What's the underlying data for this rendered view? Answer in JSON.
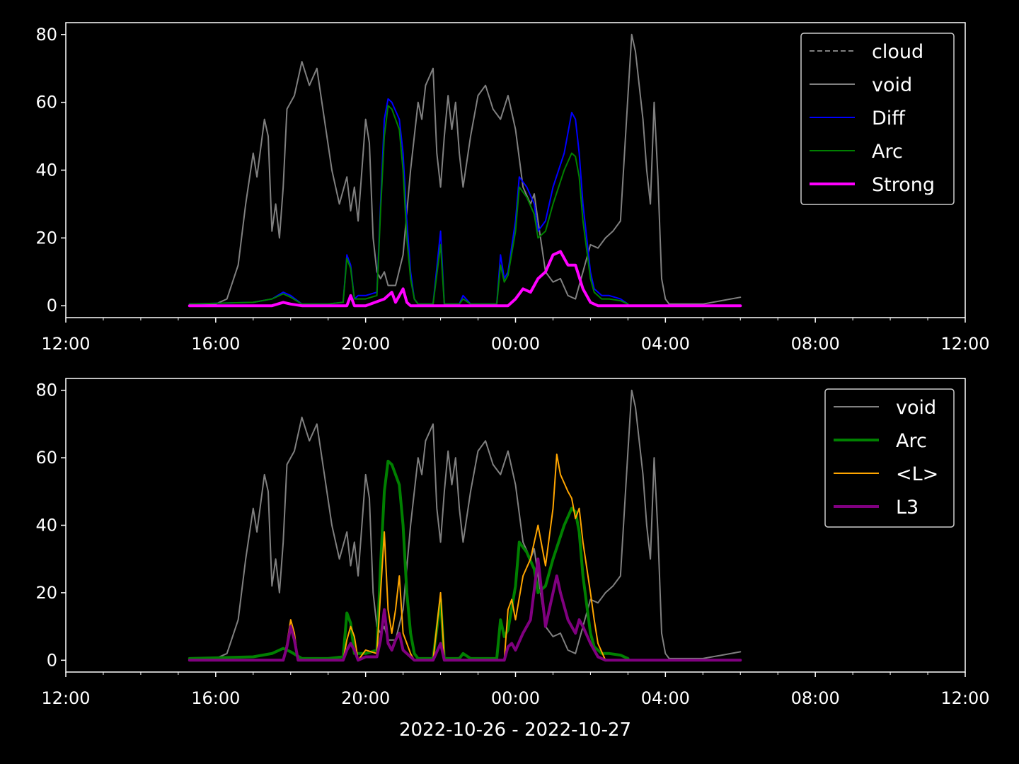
{
  "figure": {
    "background": "#000000",
    "foreground": "#ffffff",
    "xlabel": "2022-10-26 - 2022-10-27"
  },
  "chart_data": [
    {
      "type": "line",
      "x_unit": "hours since 2022-10-26 00:00",
      "xlim": [
        12,
        36
      ],
      "ylim": [
        -3.5,
        83.5
      ],
      "x_ticks": [
        12,
        16,
        20,
        24,
        28,
        32,
        36
      ],
      "x_tick_labels": [
        "12:00",
        "16:00",
        "20:00",
        "00:00",
        "04:00",
        "08:00",
        "12:00"
      ],
      "y_ticks": [
        0,
        20,
        40,
        60,
        80
      ],
      "y_tick_labels": [
        "0",
        "20",
        "40",
        "60",
        "80"
      ],
      "legend": {
        "placement": "top-right",
        "entries": [
          {
            "label": "cloud",
            "color": "#808080",
            "style": "dashed",
            "width": 2
          },
          {
            "label": "void",
            "color": "#808080",
            "style": "solid",
            "width": 2
          },
          {
            "label": "Diff",
            "color": "#0000ff",
            "style": "solid",
            "width": 2
          },
          {
            "label": "Arc",
            "color": "#008000",
            "style": "solid",
            "width": 2
          },
          {
            "label": "Strong",
            "color": "#ff00ff",
            "style": "solid",
            "width": 4
          }
        ]
      },
      "series": [
        {
          "name": "void",
          "color": "#808080",
          "width": 2,
          "x": [
            15.3,
            16.0,
            16.3,
            16.6,
            16.8,
            17.0,
            17.1,
            17.3,
            17.4,
            17.5,
            17.6,
            17.7,
            17.8,
            17.9,
            18.1,
            18.3,
            18.5,
            18.7,
            18.9,
            19.1,
            19.3,
            19.5,
            19.6,
            19.7,
            19.8,
            19.9,
            20.0,
            20.1,
            20.2,
            20.3,
            20.4,
            20.5,
            20.6,
            20.8,
            21.0,
            21.2,
            21.4,
            21.5,
            21.6,
            21.8,
            21.9,
            22.0,
            22.1,
            22.2,
            22.3,
            22.4,
            22.5,
            22.6,
            22.8,
            23.0,
            23.2,
            23.4,
            23.6,
            23.8,
            24.0,
            24.2,
            24.4,
            24.5,
            24.6,
            24.8,
            25.0,
            25.2,
            25.4,
            25.6,
            25.8,
            26.0,
            26.2,
            26.4,
            26.6,
            26.8,
            27.0,
            27.1,
            27.2,
            27.3,
            27.4,
            27.5,
            27.6,
            27.7,
            27.8,
            27.9,
            28.0,
            28.1,
            28.2,
            28.3,
            28.4,
            28.6,
            29.0,
            30.0
          ],
          "y": [
            0.5,
            0.5,
            2,
            12,
            30,
            45,
            38,
            55,
            50,
            22,
            30,
            20,
            35,
            58,
            62,
            72,
            65,
            70,
            55,
            40,
            30,
            38,
            28,
            35,
            25,
            40,
            55,
            48,
            20,
            10,
            8,
            10,
            6,
            6,
            15,
            40,
            60,
            55,
            65,
            70,
            45,
            35,
            50,
            62,
            52,
            60,
            45,
            35,
            50,
            62,
            65,
            58,
            55,
            62,
            52,
            35,
            30,
            33,
            25,
            10,
            7,
            8,
            3,
            2,
            10,
            18,
            17,
            20,
            22,
            25,
            62,
            80,
            75,
            65,
            55,
            40,
            30,
            60,
            38,
            8,
            2,
            0.5,
            0.5,
            0.5,
            0.5,
            0.5,
            0.5,
            2.5
          ]
        },
        {
          "name": "Diff",
          "color": "#0000ff",
          "width": 2,
          "x": [
            15.3,
            17.0,
            17.5,
            17.8,
            18.0,
            18.3,
            19.0,
            19.4,
            19.5,
            19.6,
            19.7,
            19.8,
            20.0,
            20.3,
            20.4,
            20.5,
            20.6,
            20.7,
            20.9,
            21.0,
            21.1,
            21.2,
            21.3,
            21.4,
            21.5,
            21.8,
            22.0,
            22.1,
            22.2,
            22.5,
            22.6,
            22.8,
            23.5,
            23.6,
            23.7,
            23.8,
            24.0,
            24.1,
            24.3,
            24.5,
            24.6,
            24.8,
            25.0,
            25.3,
            25.5,
            25.6,
            25.7,
            25.8,
            26.0,
            26.1,
            26.3,
            26.5,
            26.8,
            27.0
          ],
          "y": [
            0.5,
            1,
            2,
            4,
            3,
            0.5,
            0.5,
            1,
            15,
            12,
            2,
            3,
            3,
            4,
            30,
            55,
            61,
            60,
            55,
            45,
            25,
            10,
            2,
            0.5,
            0.5,
            0.5,
            22,
            0.5,
            0.5,
            0.5,
            3,
            0.5,
            0.5,
            15,
            8,
            10,
            25,
            38,
            35,
            30,
            22,
            25,
            35,
            45,
            57,
            55,
            45,
            30,
            10,
            5,
            3,
            3,
            2,
            0.5
          ]
        },
        {
          "name": "Arc",
          "color": "#008000",
          "width": 2,
          "x": [
            15.3,
            17.0,
            17.5,
            17.8,
            18.0,
            18.3,
            19.0,
            19.4,
            19.5,
            19.6,
            19.7,
            19.8,
            20.0,
            20.3,
            20.4,
            20.5,
            20.6,
            20.7,
            20.9,
            21.0,
            21.1,
            21.2,
            21.3,
            21.4,
            21.5,
            21.8,
            22.0,
            22.1,
            22.2,
            22.5,
            22.6,
            22.8,
            23.5,
            23.6,
            23.7,
            23.8,
            24.0,
            24.1,
            24.3,
            24.5,
            24.6,
            24.8,
            25.0,
            25.3,
            25.5,
            25.6,
            25.7,
            25.8,
            26.0,
            26.1,
            26.3,
            26.5,
            26.8,
            27.0
          ],
          "y": [
            0.5,
            1,
            2,
            3.5,
            2.5,
            0.5,
            0.5,
            1,
            14,
            11,
            2,
            2,
            2,
            3,
            28,
            50,
            59,
            58,
            52,
            40,
            20,
            8,
            2,
            0.5,
            0.5,
            0.5,
            18,
            0.5,
            0.5,
            0.5,
            2,
            0.5,
            0.5,
            12,
            7,
            9,
            22,
            35,
            32,
            27,
            20,
            22,
            30,
            40,
            45,
            44,
            38,
            25,
            8,
            4,
            2,
            2,
            1.5,
            0.5
          ]
        },
        {
          "name": "Strong",
          "color": "#ff00ff",
          "width": 4,
          "x": [
            15.3,
            17.5,
            17.8,
            18.0,
            18.3,
            19.5,
            19.6,
            19.7,
            19.8,
            20.0,
            20.5,
            20.7,
            20.8,
            21.0,
            21.1,
            21.2,
            23.8,
            24.0,
            24.2,
            24.4,
            24.6,
            24.8,
            25.0,
            25.2,
            25.4,
            25.6,
            25.8,
            26.0,
            26.2,
            30.0
          ],
          "y": [
            0,
            0,
            1,
            0.5,
            0,
            0,
            3,
            0,
            0,
            0,
            2,
            4,
            1,
            5,
            1,
            0,
            0,
            2,
            5,
            4,
            8,
            10,
            15,
            16,
            12,
            12,
            5,
            1,
            0,
            0
          ]
        }
      ]
    },
    {
      "type": "line",
      "x_unit": "hours since 2022-10-26 00:00",
      "xlim": [
        12,
        36
      ],
      "ylim": [
        -3.5,
        83.5
      ],
      "x_ticks": [
        12,
        16,
        20,
        24,
        28,
        32,
        36
      ],
      "x_tick_labels": [
        "12:00",
        "16:00",
        "20:00",
        "00:00",
        "04:00",
        "08:00",
        "12:00"
      ],
      "y_ticks": [
        0,
        20,
        40,
        60,
        80
      ],
      "y_tick_labels": [
        "0",
        "20",
        "40",
        "60",
        "80"
      ],
      "legend": {
        "placement": "top-right",
        "entries": [
          {
            "label": "void",
            "color": "#808080",
            "style": "solid",
            "width": 2
          },
          {
            "label": "Arc",
            "color": "#008000",
            "style": "solid",
            "width": 4
          },
          {
            "label": "<L>",
            "color": "#ffa500",
            "style": "solid",
            "width": 2
          },
          {
            "label": "L3",
            "color": "#800080",
            "style": "solid",
            "width": 4
          }
        ]
      },
      "series": [
        {
          "name": "void",
          "color": "#808080",
          "width": 2,
          "x": [
            15.3,
            16.0,
            16.3,
            16.6,
            16.8,
            17.0,
            17.1,
            17.3,
            17.4,
            17.5,
            17.6,
            17.7,
            17.8,
            17.9,
            18.1,
            18.3,
            18.5,
            18.7,
            18.9,
            19.1,
            19.3,
            19.5,
            19.6,
            19.7,
            19.8,
            19.9,
            20.0,
            20.1,
            20.2,
            20.3,
            20.4,
            20.5,
            20.6,
            20.8,
            21.0,
            21.2,
            21.4,
            21.5,
            21.6,
            21.8,
            21.9,
            22.0,
            22.1,
            22.2,
            22.3,
            22.4,
            22.5,
            22.6,
            22.8,
            23.0,
            23.2,
            23.4,
            23.6,
            23.8,
            24.0,
            24.2,
            24.4,
            24.5,
            24.6,
            24.8,
            25.0,
            25.2,
            25.4,
            25.6,
            25.8,
            26.0,
            26.2,
            26.4,
            26.6,
            26.8,
            27.0,
            27.1,
            27.2,
            27.3,
            27.4,
            27.5,
            27.6,
            27.7,
            27.8,
            27.9,
            28.0,
            28.1,
            28.2,
            28.3,
            28.4,
            28.6,
            29.0,
            30.0
          ],
          "y": [
            0.5,
            0.5,
            2,
            12,
            30,
            45,
            38,
            55,
            50,
            22,
            30,
            20,
            35,
            58,
            62,
            72,
            65,
            70,
            55,
            40,
            30,
            38,
            28,
            35,
            25,
            40,
            55,
            48,
            20,
            10,
            8,
            10,
            6,
            6,
            15,
            40,
            60,
            55,
            65,
            70,
            45,
            35,
            50,
            62,
            52,
            60,
            45,
            35,
            50,
            62,
            65,
            58,
            55,
            62,
            52,
            35,
            30,
            33,
            25,
            10,
            7,
            8,
            3,
            2,
            10,
            18,
            17,
            20,
            22,
            25,
            62,
            80,
            75,
            65,
            55,
            40,
            30,
            60,
            38,
            8,
            2,
            0.5,
            0.5,
            0.5,
            0.5,
            0.5,
            0.5,
            2.5
          ]
        },
        {
          "name": "Arc",
          "color": "#008000",
          "width": 4,
          "x": [
            15.3,
            17.0,
            17.5,
            17.8,
            18.0,
            18.3,
            19.0,
            19.4,
            19.5,
            19.6,
            19.7,
            19.8,
            20.0,
            20.3,
            20.4,
            20.5,
            20.6,
            20.7,
            20.9,
            21.0,
            21.1,
            21.2,
            21.3,
            21.4,
            21.5,
            21.8,
            22.0,
            22.1,
            22.2,
            22.5,
            22.6,
            22.8,
            23.5,
            23.6,
            23.7,
            23.8,
            24.0,
            24.1,
            24.3,
            24.5,
            24.6,
            24.8,
            25.0,
            25.3,
            25.5,
            25.6,
            25.7,
            25.8,
            26.0,
            26.1,
            26.3,
            26.5,
            26.8,
            27.0
          ],
          "y": [
            0.5,
            1,
            2,
            3.5,
            2.5,
            0.5,
            0.5,
            1,
            14,
            11,
            2,
            2,
            2,
            3,
            28,
            50,
            59,
            58,
            52,
            40,
            20,
            8,
            2,
            0.5,
            0.5,
            0.5,
            18,
            0.5,
            0.5,
            0.5,
            2,
            0.5,
            0.5,
            12,
            7,
            9,
            22,
            35,
            32,
            27,
            20,
            22,
            30,
            40,
            45,
            44,
            38,
            25,
            8,
            4,
            2,
            2,
            1.5,
            0.5
          ]
        },
        {
          "name": "<L>",
          "color": "#ffa500",
          "width": 2,
          "x": [
            15.3,
            17.8,
            17.9,
            18.0,
            18.1,
            18.2,
            19.4,
            19.5,
            19.6,
            19.7,
            19.8,
            20.0,
            20.3,
            20.4,
            20.5,
            20.6,
            20.7,
            20.8,
            20.9,
            21.0,
            21.1,
            21.2,
            21.3,
            21.8,
            22.0,
            22.1,
            22.2,
            23.7,
            23.8,
            23.9,
            24.0,
            24.2,
            24.4,
            24.6,
            24.8,
            25.0,
            25.1,
            25.2,
            25.4,
            25.5,
            25.6,
            25.7,
            25.8,
            26.0,
            26.1,
            26.2,
            26.4,
            30.0
          ],
          "y": [
            0,
            0,
            5,
            12,
            8,
            0,
            0,
            6,
            10,
            7,
            0,
            3,
            2,
            20,
            38,
            15,
            8,
            15,
            25,
            8,
            5,
            2,
            0,
            0,
            20,
            0,
            0,
            0,
            15,
            18,
            12,
            25,
            30,
            40,
            28,
            45,
            61,
            55,
            50,
            48,
            42,
            45,
            35,
            20,
            12,
            5,
            0,
            0
          ]
        },
        {
          "name": "L3",
          "color": "#800080",
          "width": 4,
          "x": [
            15.3,
            17.8,
            17.9,
            18.0,
            18.1,
            18.2,
            19.4,
            19.5,
            19.6,
            19.7,
            19.8,
            20.0,
            20.3,
            20.4,
            20.5,
            20.6,
            20.7,
            20.8,
            20.9,
            21.0,
            21.1,
            21.2,
            21.3,
            21.8,
            22.0,
            22.1,
            22.2,
            23.7,
            23.8,
            23.9,
            24.0,
            24.2,
            24.4,
            24.6,
            24.8,
            25.0,
            25.1,
            25.2,
            25.4,
            25.5,
            25.6,
            25.7,
            25.8,
            26.0,
            26.1,
            26.2,
            26.4,
            30.0
          ],
          "y": [
            0,
            0,
            4,
            10,
            6,
            0,
            0,
            3,
            5,
            3,
            0,
            1,
            1,
            6,
            15,
            5,
            3,
            6,
            8,
            3,
            2,
            1,
            0,
            0,
            5,
            0,
            0,
            0,
            4,
            5,
            3,
            8,
            12,
            30,
            10,
            20,
            25,
            20,
            12,
            10,
            8,
            12,
            10,
            5,
            3,
            1,
            0,
            0
          ]
        }
      ]
    }
  ]
}
